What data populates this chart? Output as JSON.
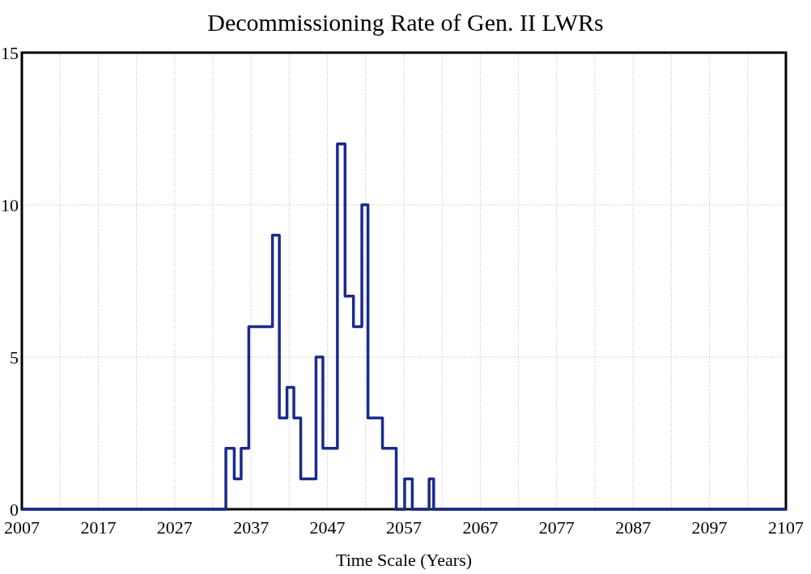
{
  "chart_data": {
    "type": "step",
    "title": "Decommissioning Rate of Gen. II LWRs",
    "xlabel": "Time Scale (Years)",
    "x": [
      2007,
      2033.7,
      2034.8,
      2035.7,
      2036.7,
      2039.8,
      2040.7,
      2041.7,
      2042.6,
      2043.5,
      2045.5,
      2046.4,
      2048.3,
      2049.3,
      2050.4,
      2051.5,
      2052.3,
      2054.2,
      2056.0,
      2057.1,
      2058.1,
      2060.3,
      2060.9,
      2107
    ],
    "series": [
      {
        "color": "#1a2a8c",
        "values": [
          0,
          2,
          1,
          2,
          6,
          9,
          3,
          4,
          3,
          1,
          5,
          2,
          12,
          7,
          6,
          10,
          3,
          2,
          0,
          1,
          0,
          1,
          0,
          0
        ]
      }
    ],
    "xlim": [
      2007,
      2107
    ],
    "xticks": [
      2007,
      {
        "value": 2012,
        "label": null
      },
      2017,
      {
        "value": 2022,
        "label": null
      },
      2027,
      {
        "value": 2032,
        "label": null
      },
      2037,
      {
        "value": 2042,
        "label": null
      },
      2047,
      {
        "value": 2052,
        "label": null
      },
      2057,
      {
        "value": 2062,
        "label": null
      },
      2067,
      {
        "value": 2072,
        "label": null
      },
      2077,
      {
        "value": 2082,
        "label": null
      },
      2087,
      {
        "value": 2092,
        "label": null
      },
      2097,
      {
        "value": 2102,
        "label": null
      },
      2107
    ],
    "ylim": [
      0,
      15
    ],
    "yticks": [
      0,
      5,
      10,
      15
    ],
    "grid": true
  }
}
